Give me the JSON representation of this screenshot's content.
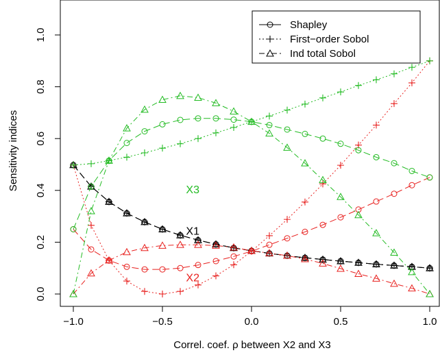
{
  "chart_data": {
    "type": "line",
    "title": "",
    "xlabel": "Correl. coef. ρ between X2 and X3",
    "ylabel": "Sensitivity indices",
    "xlim": [
      -1.0,
      1.0
    ],
    "ylim": [
      0.0,
      1.0
    ],
    "xticks": [
      "−1.0",
      "−0.5",
      "0.0",
      "0.5",
      "1.0"
    ],
    "yticks": [
      "0.0",
      "0.2",
      "0.4",
      "0.6",
      "0.8",
      "1.0"
    ],
    "x": [
      -1.0,
      -0.9,
      -0.8,
      -0.7,
      -0.6,
      -0.5,
      -0.4,
      -0.3,
      -0.2,
      -0.1,
      0.0,
      0.1,
      0.2,
      0.3,
      0.4,
      0.5,
      0.6,
      0.7,
      0.8,
      0.9,
      1.0
    ],
    "legend": {
      "position": "top-right",
      "entries": [
        {
          "label": "Shapley",
          "line": "solid",
          "marker": "circle"
        },
        {
          "label": "First−order Sobol",
          "line": "dotted",
          "marker": "plus"
        },
        {
          "label": "Ind total Sobol",
          "line": "dashdot",
          "marker": "triangle"
        }
      ]
    },
    "annotations": [
      {
        "text": "X3",
        "color": "#22bb22",
        "x": -0.33,
        "y": 0.4
      },
      {
        "text": "X1",
        "color": "#000000",
        "x": -0.33,
        "y": 0.24
      },
      {
        "text": "X2",
        "color": "#e8201e",
        "x": -0.33,
        "y": 0.06
      }
    ],
    "series": [
      {
        "variable": "X1",
        "index": "Shapley",
        "color": "#000000",
        "dash": "10,5",
        "values": [
          0.498,
          0.415,
          0.356,
          0.312,
          0.278,
          0.25,
          0.227,
          0.208,
          0.192,
          0.178,
          0.167,
          0.157,
          0.148,
          0.14,
          0.133,
          0.127,
          0.121,
          0.115,
          0.11,
          0.105,
          0.1
        ]
      },
      {
        "variable": "X1",
        "index": "First-order Sobol",
        "color": "#000000",
        "dash": "10,5",
        "values": [
          0.498,
          0.415,
          0.356,
          0.312,
          0.278,
          0.25,
          0.227,
          0.208,
          0.192,
          0.178,
          0.167,
          0.157,
          0.148,
          0.14,
          0.133,
          0.127,
          0.121,
          0.115,
          0.11,
          0.105,
          0.1
        ]
      },
      {
        "variable": "X1",
        "index": "Ind total Sobol",
        "color": "#000000",
        "dash": "10,5",
        "values": [
          0.498,
          0.415,
          0.356,
          0.312,
          0.278,
          0.25,
          0.227,
          0.208,
          0.192,
          0.178,
          0.167,
          0.157,
          0.148,
          0.14,
          0.133,
          0.127,
          0.121,
          0.115,
          0.11,
          0.105,
          0.1
        ]
      },
      {
        "variable": "X2",
        "index": "Shapley",
        "color": "#e8201e",
        "dash": "10,5",
        "values": [
          0.25,
          0.172,
          0.13,
          0.105,
          0.095,
          0.095,
          0.1,
          0.112,
          0.127,
          0.145,
          0.165,
          0.19,
          0.215,
          0.24,
          0.267,
          0.296,
          0.326,
          0.357,
          0.387,
          0.42,
          0.45
        ]
      },
      {
        "variable": "X2",
        "index": "First-order Sobol",
        "color": "#e8201e",
        "dash": "2,3",
        "values": [
          0.498,
          0.265,
          0.13,
          0.05,
          0.01,
          0.0,
          0.01,
          0.035,
          0.07,
          0.113,
          0.165,
          0.225,
          0.288,
          0.355,
          0.425,
          0.497,
          0.575,
          0.652,
          0.735,
          0.815,
          0.9
        ]
      },
      {
        "variable": "X2",
        "index": "Ind total Sobol",
        "color": "#e8201e",
        "dash": "8,4,2,4",
        "values": [
          0.0,
          0.08,
          0.13,
          0.162,
          0.178,
          0.187,
          0.19,
          0.19,
          0.187,
          0.18,
          0.167,
          0.158,
          0.148,
          0.135,
          0.118,
          0.098,
          0.078,
          0.06,
          0.04,
          0.022,
          0.0
        ]
      },
      {
        "variable": "X3",
        "index": "Shapley",
        "color": "#22bb22",
        "dash": "10,5",
        "values": [
          0.25,
          0.415,
          0.515,
          0.583,
          0.628,
          0.655,
          0.672,
          0.678,
          0.678,
          0.673,
          0.665,
          0.652,
          0.635,
          0.618,
          0.6,
          0.58,
          0.555,
          0.528,
          0.505,
          0.475,
          0.45
        ]
      },
      {
        "variable": "X3",
        "index": "First-order Sobol",
        "color": "#22bb22",
        "dash": "2,3",
        "values": [
          0.498,
          0.503,
          0.515,
          0.528,
          0.545,
          0.563,
          0.58,
          0.6,
          0.622,
          0.643,
          0.665,
          0.687,
          0.71,
          0.733,
          0.757,
          0.78,
          0.805,
          0.827,
          0.85,
          0.875,
          0.9
        ]
      },
      {
        "variable": "X3",
        "index": "Ind total Sobol",
        "color": "#22bb22",
        "dash": "8,4,2,4",
        "values": [
          0.0,
          0.32,
          0.515,
          0.64,
          0.712,
          0.75,
          0.765,
          0.758,
          0.737,
          0.705,
          0.665,
          0.62,
          0.565,
          0.505,
          0.44,
          0.375,
          0.305,
          0.235,
          0.16,
          0.085,
          0.0
        ]
      }
    ]
  }
}
